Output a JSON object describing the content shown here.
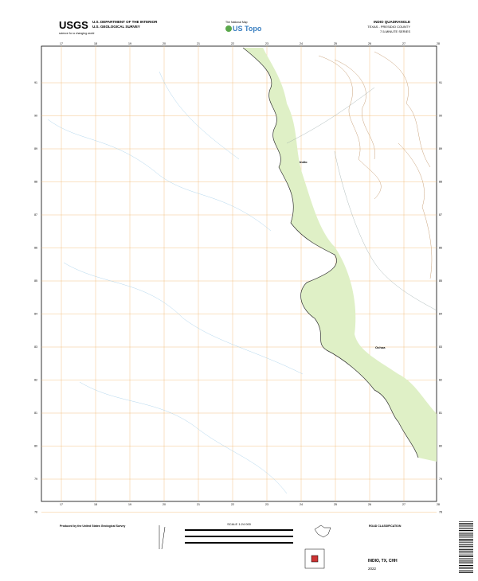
{
  "header": {
    "agency": "USGS",
    "tagline": "science for a changing world",
    "department": "U.S. DEPARTMENT OF THE INTERIOR",
    "survey": "U.S. GEOLOGICAL SURVEY",
    "program_top": "The National Map",
    "program": "US Topo",
    "quad_title": "INDIO QUADRANGLE",
    "state_county": "TEXAS - PRESIDIO COUNTY",
    "series": "7.5-MINUTE SERIES"
  },
  "map": {
    "top_labels": [
      "17",
      "18",
      "19",
      "20",
      "21",
      "22",
      "23",
      "24",
      "25",
      "26",
      "27",
      "28"
    ],
    "side_labels": [
      "91",
      "90",
      "89",
      "88",
      "87",
      "86",
      "85",
      "84",
      "83",
      "82",
      "81",
      "80",
      "79",
      "78"
    ],
    "places": [
      "Indio",
      "Ochoa"
    ]
  },
  "footer": {
    "producer": "Produced by the United States Geological Survey",
    "scale": "SCALE 1:24 000",
    "road_legend": "ROAD CLASSIFICATION",
    "quad_id": "INDIO, TX, CHH",
    "year": "2022"
  }
}
